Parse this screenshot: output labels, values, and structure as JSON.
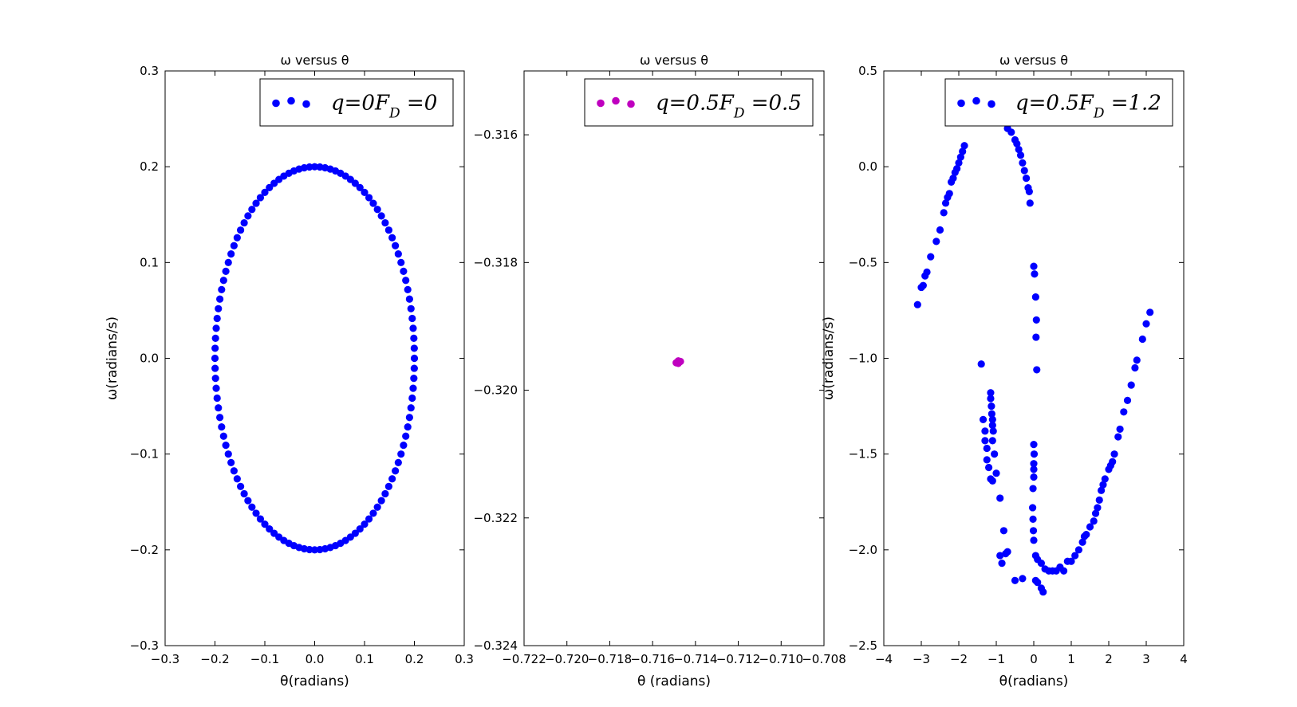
{
  "chart_data": [
    {
      "type": "scatter",
      "title": "ω versus θ",
      "xlabel": "θ(radians)",
      "ylabel": "ω(radians/s)",
      "xlim": [
        -0.3,
        0.3
      ],
      "ylim": [
        -0.3,
        0.3
      ],
      "xticks": [
        -0.3,
        -0.2,
        -0.1,
        0.0,
        0.1,
        0.2,
        0.3
      ],
      "xtick_labels": [
        "−0.3",
        "−0.2",
        "−0.1",
        "0.0",
        "0.1",
        "0.2",
        "0.3"
      ],
      "yticks": [
        -0.3,
        -0.2,
        -0.1,
        0.0,
        0.1,
        0.2,
        0.3
      ],
      "ytick_labels": [
        "−0.3",
        "−0.2",
        "−0.1",
        "0.0",
        "0.1",
        "0.2",
        "0.3"
      ],
      "legend_position": "top-right",
      "series": [
        {
          "name": "q=0F_D =0",
          "color": "#0000ff",
          "shape": "ellipse",
          "ellipse": {
            "center": [
              0,
              0
            ],
            "rx": 0.2,
            "ry": 0.2,
            "points": 120
          },
          "points": []
        }
      ]
    },
    {
      "type": "scatter",
      "title": "ω versus θ",
      "xlabel": "θ (radians)",
      "ylabel": "",
      "xlim": [
        -0.722,
        -0.708
      ],
      "ylim": [
        -0.324,
        -0.315
      ],
      "xticks": [
        -0.722,
        -0.72,
        -0.718,
        -0.716,
        -0.714,
        -0.712,
        -0.71,
        -0.708
      ],
      "xtick_labels": [
        "−0.722",
        "−0.720",
        "−0.718",
        "−0.716",
        "−0.714",
        "−0.712",
        "−0.710",
        "−0.708"
      ],
      "yticks": [
        -0.324,
        -0.322,
        -0.32,
        -0.318,
        -0.316
      ],
      "ytick_labels": [
        "−0.324",
        "−0.322",
        "−0.320",
        "−0.318",
        "−0.316"
      ],
      "legend_position": "top-right",
      "series": [
        {
          "name": "q=0.5F_D =0.5",
          "color": "#bf00bf",
          "points": [
            [
              -0.7148,
              -0.31954
            ],
            [
              -0.7149,
              -0.31957
            ],
            [
              -0.7148,
              -0.31958
            ],
            [
              -0.7147,
              -0.31955
            ]
          ]
        }
      ]
    },
    {
      "type": "scatter",
      "title": "ω versus θ",
      "xlabel": "θ(radians)",
      "ylabel": "ω(radians/s)",
      "xlim": [
        -4,
        4
      ],
      "ylim": [
        -2.5,
        0.5
      ],
      "xticks": [
        -4,
        -3,
        -2,
        -1,
        0,
        1,
        2,
        3,
        4
      ],
      "xtick_labels": [
        "−4",
        "−3",
        "−2",
        "−1",
        "0",
        "1",
        "2",
        "3",
        "4"
      ],
      "yticks": [
        -2.5,
        -2.0,
        -1.5,
        -1.0,
        -0.5,
        0.0,
        0.5
      ],
      "ytick_labels": [
        "−2.5",
        "−2.0",
        "−1.5",
        "−1.0",
        "−0.5",
        "0.0",
        "0.5"
      ],
      "legend_position": "top-right",
      "series": [
        {
          "name": "q=0.5F_D =1.2",
          "color": "#0000ff",
          "points": [
            [
              -3.1,
              -0.72
            ],
            [
              -3.0,
              -0.63
            ],
            [
              -2.95,
              -0.62
            ],
            [
              -2.9,
              -0.57
            ],
            [
              -2.85,
              -0.55
            ],
            [
              -2.75,
              -0.47
            ],
            [
              -2.6,
              -0.39
            ],
            [
              -2.5,
              -0.33
            ],
            [
              -2.4,
              -0.24
            ],
            [
              -2.35,
              -0.19
            ],
            [
              -2.3,
              -0.16
            ],
            [
              -2.25,
              -0.14
            ],
            [
              -2.2,
              -0.08
            ],
            [
              -2.15,
              -0.06
            ],
            [
              -2.1,
              -0.03
            ],
            [
              -2.05,
              -0.01
            ],
            [
              -2.0,
              0.02
            ],
            [
              -1.95,
              0.05
            ],
            [
              -1.9,
              0.08
            ],
            [
              -1.85,
              0.11
            ],
            [
              -0.7,
              0.2
            ],
            [
              -0.6,
              0.18
            ],
            [
              -0.5,
              0.14
            ],
            [
              -0.45,
              0.12
            ],
            [
              -0.4,
              0.09
            ],
            [
              -0.35,
              0.06
            ],
            [
              -0.3,
              0.02
            ],
            [
              -0.25,
              -0.02
            ],
            [
              -0.2,
              -0.06
            ],
            [
              -0.15,
              -0.11
            ],
            [
              -0.12,
              -0.13
            ],
            [
              -0.1,
              -0.19
            ],
            [
              0.0,
              -0.52
            ],
            [
              0.02,
              -0.56
            ],
            [
              0.05,
              -0.68
            ],
            [
              0.07,
              -0.8
            ],
            [
              0.06,
              -0.89
            ],
            [
              0.08,
              -1.06
            ],
            [
              -1.4,
              -1.03
            ],
            [
              -1.35,
              -1.32
            ],
            [
              -1.3,
              -1.38
            ],
            [
              -1.3,
              -1.43
            ],
            [
              -1.25,
              -1.47
            ],
            [
              -1.25,
              -1.53
            ],
            [
              -1.2,
              -1.57
            ],
            [
              -1.15,
              -1.63
            ],
            [
              -1.1,
              -1.64
            ],
            [
              -1.15,
              -1.18
            ],
            [
              -1.15,
              -1.21
            ],
            [
              -1.13,
              -1.25
            ],
            [
              -1.12,
              -1.29
            ],
            [
              -1.1,
              -1.32
            ],
            [
              -1.1,
              -1.35
            ],
            [
              -1.08,
              -1.38
            ],
            [
              -1.1,
              -1.43
            ],
            [
              -1.05,
              -1.5
            ],
            [
              -1.0,
              -1.6
            ],
            [
              -0.9,
              -1.73
            ],
            [
              -0.8,
              -1.9
            ],
            [
              -0.75,
              -2.02
            ],
            [
              -0.7,
              -2.01
            ],
            [
              -0.5,
              -2.16
            ],
            [
              -0.85,
              -2.07
            ],
            [
              -0.9,
              -2.03
            ],
            [
              0.0,
              -1.45
            ],
            [
              0.01,
              -1.5
            ],
            [
              0.0,
              -1.55
            ],
            [
              0.0,
              -1.58
            ],
            [
              0.0,
              -1.62
            ],
            [
              -0.02,
              -1.68
            ],
            [
              -0.03,
              -1.78
            ],
            [
              -0.02,
              -1.84
            ],
            [
              -0.01,
              -1.9
            ],
            [
              0.0,
              -1.95
            ],
            [
              0.05,
              -2.03
            ],
            [
              0.1,
              -2.05
            ],
            [
              0.2,
              -2.07
            ],
            [
              0.3,
              -2.1
            ],
            [
              0.4,
              -2.11
            ],
            [
              0.5,
              -2.11
            ],
            [
              0.6,
              -2.11
            ],
            [
              0.7,
              -2.09
            ],
            [
              0.8,
              -2.11
            ],
            [
              0.9,
              -2.06
            ],
            [
              1.0,
              -2.06
            ],
            [
              1.1,
              -2.03
            ],
            [
              1.2,
              -2.0
            ],
            [
              1.3,
              -1.96
            ],
            [
              1.35,
              -1.93
            ],
            [
              1.4,
              -1.92
            ],
            [
              1.5,
              -1.88
            ],
            [
              1.6,
              -1.85
            ],
            [
              1.65,
              -1.81
            ],
            [
              1.7,
              -1.78
            ],
            [
              1.75,
              -1.74
            ],
            [
              1.8,
              -1.69
            ],
            [
              1.85,
              -1.66
            ],
            [
              1.9,
              -1.63
            ],
            [
              2.0,
              -1.58
            ],
            [
              2.05,
              -1.56
            ],
            [
              2.1,
              -1.54
            ],
            [
              2.15,
              -1.5
            ],
            [
              2.25,
              -1.41
            ],
            [
              2.3,
              -1.37
            ],
            [
              2.4,
              -1.28
            ],
            [
              2.5,
              -1.22
            ],
            [
              2.6,
              -1.14
            ],
            [
              2.7,
              -1.05
            ],
            [
              2.75,
              -1.01
            ],
            [
              2.9,
              -0.9
            ],
            [
              3.0,
              -0.82
            ],
            [
              3.1,
              -0.76
            ],
            [
              0.05,
              -2.16
            ],
            [
              0.1,
              -2.17
            ],
            [
              0.2,
              -2.2
            ],
            [
              0.25,
              -2.22
            ],
            [
              -0.3,
              -2.15
            ]
          ]
        }
      ]
    }
  ]
}
